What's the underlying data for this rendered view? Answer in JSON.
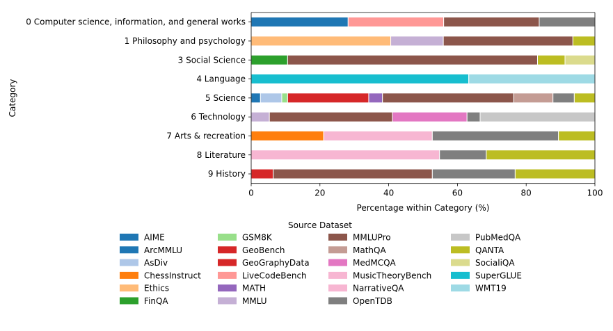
{
  "chart_data": {
    "type": "bar",
    "orientation": "horizontal",
    "stacked": true,
    "xlabel": "Percentage within Category (%)",
    "ylabel": "Category",
    "xlim": [
      0,
      100
    ],
    "xticks": [
      "0",
      "20",
      "40",
      "60",
      "80",
      "100"
    ],
    "grid": false,
    "legend_title": "Source Dataset",
    "legend_position": "bottom",
    "categories": [
      "0 Computer science, information, and general works",
      "1 Philosophy and psychology",
      "3 Social Science",
      "4 Language",
      "5 Science",
      "6 Technology",
      "7 Arts & recreation",
      "8 Literature",
      "9 History"
    ],
    "series": [
      {
        "name": "AIME",
        "color": "#1f77b4",
        "values": [
          0,
          0,
          0,
          0,
          0,
          0,
          0,
          0,
          0
        ]
      },
      {
        "name": "ArcMMLU",
        "color": "#1f77b4",
        "values": [
          28.2,
          0,
          0,
          0,
          2.7,
          0,
          0,
          0,
          0
        ]
      },
      {
        "name": "AsDiv",
        "color": "#aec7e8",
        "values": [
          0,
          0,
          0,
          0,
          6.2,
          0,
          0,
          0,
          0
        ]
      },
      {
        "name": "ChessInstruct",
        "color": "#ff7f0e",
        "values": [
          0,
          0,
          0,
          0,
          0,
          0,
          21.1,
          0,
          0
        ]
      },
      {
        "name": "Ethics",
        "color": "#ffbb78",
        "values": [
          0,
          40.6,
          0,
          0,
          0,
          0,
          0,
          0,
          0
        ]
      },
      {
        "name": "FinQA",
        "color": "#2ca02c",
        "values": [
          0,
          0,
          10.6,
          0,
          0,
          0,
          0,
          0,
          0
        ]
      },
      {
        "name": "GSM8K",
        "color": "#98df8a",
        "values": [
          0,
          0,
          0,
          0,
          1.7,
          0,
          0,
          0,
          0
        ]
      },
      {
        "name": "GeoBench",
        "color": "#d62728",
        "values": [
          0,
          0,
          0,
          0,
          0,
          0,
          0,
          0,
          0
        ]
      },
      {
        "name": "GeoGraphyData",
        "color": "#d62728",
        "values": [
          0,
          0,
          0,
          0,
          23.6,
          0,
          0,
          0,
          6.4
        ]
      },
      {
        "name": "LiveCodeBench",
        "color": "#ff9896",
        "values": [
          27.8,
          0,
          0,
          0,
          0,
          0,
          0,
          0,
          0
        ]
      },
      {
        "name": "MATH",
        "color": "#9467bd",
        "values": [
          0,
          0,
          0,
          0,
          4.0,
          0,
          0,
          0,
          0
        ]
      },
      {
        "name": "MMLU",
        "color": "#c5b0d5",
        "values": [
          0,
          15.3,
          0,
          0,
          0,
          5.3,
          0,
          0,
          0
        ]
      },
      {
        "name": "MMLUPro",
        "color": "#8c564b",
        "values": [
          27.8,
          37.7,
          72.7,
          0,
          38.2,
          35.8,
          0,
          0,
          46.3
        ]
      },
      {
        "name": "MathQA",
        "color": "#c49c94",
        "values": [
          0,
          0,
          0,
          0,
          11.4,
          0,
          0,
          0,
          0
        ]
      },
      {
        "name": "MedMCQA",
        "color": "#e377c2",
        "values": [
          0,
          0,
          0,
          0,
          0,
          21.7,
          0,
          0,
          0
        ]
      },
      {
        "name": "MusicTheoryBench",
        "color": "#f7b6d2",
        "values": [
          0,
          0,
          0,
          0,
          0,
          0,
          0,
          0,
          0
        ]
      },
      {
        "name": "NarrativeQA",
        "color": "#f7b6d2",
        "values": [
          0,
          0,
          0,
          0,
          0,
          0,
          31.6,
          54.8,
          0
        ]
      },
      {
        "name": "OpenTDB",
        "color": "#7f7f7f",
        "values": [
          16.2,
          0,
          0,
          0,
          6.2,
          3.8,
          36.7,
          13.6,
          24.1
        ]
      },
      {
        "name": "PubMedQA",
        "color": "#c7c7c7",
        "values": [
          0,
          0,
          0,
          0,
          0,
          33.4,
          0,
          0,
          0
        ]
      },
      {
        "name": "QANTA",
        "color": "#bcbd22",
        "values": [
          0,
          6.4,
          8.0,
          0,
          6.0,
          0,
          10.6,
          31.6,
          23.2
        ]
      },
      {
        "name": "SocialiQA",
        "color": "#dbdb8d",
        "values": [
          0,
          0,
          8.7,
          0,
          0,
          0,
          0,
          0,
          0
        ]
      },
      {
        "name": "SuperGLUE",
        "color": "#17becf",
        "values": [
          0,
          0,
          0,
          63.3,
          0,
          0,
          0,
          0,
          0
        ]
      },
      {
        "name": "WMT19",
        "color": "#9edae5",
        "values": [
          0,
          0,
          0,
          36.7,
          0,
          0,
          0,
          0,
          0
        ]
      }
    ]
  }
}
